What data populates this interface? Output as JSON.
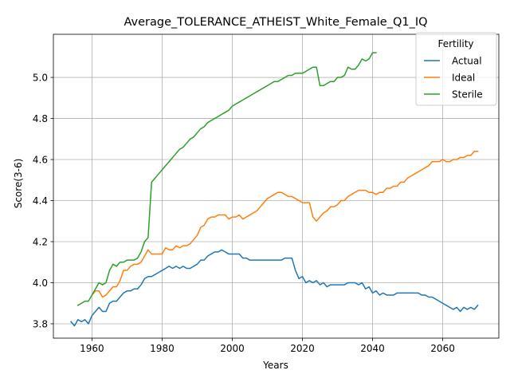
{
  "chart_data": {
    "type": "line",
    "title": "Average_TOLERANCE_ATHEIST_White_Female_Q1_IQ",
    "xlabel": "Years",
    "ylabel": "Score(3-6)",
    "xlim": [
      1949,
      2076
    ],
    "ylim": [
      3.73,
      5.21
    ],
    "xticks": [
      1960,
      1980,
      2000,
      2020,
      2040,
      2060
    ],
    "yticks": [
      3.8,
      4.0,
      4.2,
      4.4,
      4.6,
      4.8,
      5.0
    ],
    "ytick_labels": [
      "3.8",
      "4.0",
      "4.2",
      "4.4",
      "4.6",
      "4.8",
      "5.0"
    ],
    "grid": true,
    "legend": {
      "title": "Fertility",
      "placement": "top-right"
    },
    "series": [
      {
        "name": "Actual",
        "color": "#1f77b4",
        "x": [
          1954,
          1955,
          1956,
          1957,
          1958,
          1959,
          1960,
          1961,
          1962,
          1963,
          1964,
          1965,
          1966,
          1967,
          1968,
          1969,
          1970,
          1971,
          1972,
          1973,
          1974,
          1975,
          1976,
          1977,
          1978,
          1979,
          1980,
          1981,
          1982,
          1983,
          1984,
          1985,
          1986,
          1987,
          1988,
          1989,
          1990,
          1991,
          1992,
          1993,
          1994,
          1995,
          1996,
          1997,
          1998,
          1999,
          2000,
          2001,
          2002,
          2003,
          2004,
          2005,
          2006,
          2007,
          2008,
          2009,
          2010,
          2011,
          2012,
          2013,
          2014,
          2015,
          2016,
          2017,
          2018,
          2019,
          2020,
          2021,
          2022,
          2023,
          2024,
          2025,
          2026,
          2027,
          2028,
          2029,
          2030,
          2031,
          2032,
          2033,
          2034,
          2035,
          2036,
          2037,
          2038,
          2039,
          2040,
          2041,
          2042,
          2043,
          2044,
          2045,
          2046,
          2047,
          2048,
          2049,
          2050,
          2051,
          2052,
          2053,
          2054,
          2055,
          2056,
          2057,
          2058,
          2059,
          2060,
          2061,
          2062,
          2063,
          2064,
          2065,
          2066,
          2067,
          2068,
          2069,
          2070
        ],
        "y": [
          3.81,
          3.79,
          3.82,
          3.81,
          3.82,
          3.8,
          3.84,
          3.86,
          3.88,
          3.86,
          3.86,
          3.9,
          3.91,
          3.91,
          3.93,
          3.95,
          3.96,
          3.96,
          3.97,
          3.97,
          3.99,
          4.02,
          4.03,
          4.03,
          4.04,
          4.05,
          4.06,
          4.07,
          4.08,
          4.07,
          4.08,
          4.07,
          4.08,
          4.07,
          4.07,
          4.08,
          4.09,
          4.11,
          4.11,
          4.13,
          4.14,
          4.15,
          4.15,
          4.16,
          4.15,
          4.14,
          4.14,
          4.14,
          4.14,
          4.12,
          4.12,
          4.11,
          4.11,
          4.11,
          4.11,
          4.11,
          4.11,
          4.11,
          4.11,
          4.11,
          4.11,
          4.12,
          4.12,
          4.12,
          4.06,
          4.02,
          4.03,
          4.0,
          4.01,
          4.0,
          4.01,
          3.99,
          4.0,
          3.98,
          3.99,
          3.99,
          3.99,
          3.99,
          3.99,
          4.0,
          4.0,
          4.0,
          3.99,
          4.0,
          3.97,
          3.98,
          3.95,
          3.96,
          3.94,
          3.95,
          3.94,
          3.94,
          3.94,
          3.95,
          3.95,
          3.95,
          3.95,
          3.95,
          3.95,
          3.95,
          3.94,
          3.94,
          3.93,
          3.93,
          3.92,
          3.91,
          3.9,
          3.89,
          3.88,
          3.87,
          3.88,
          3.86,
          3.88,
          3.87,
          3.88,
          3.87,
          3.89
        ]
      },
      {
        "name": "Ideal",
        "color": "#ff7f0e",
        "x": [
          1960,
          1961,
          1962,
          1963,
          1964,
          1965,
          1966,
          1967,
          1968,
          1969,
          1970,
          1971,
          1972,
          1973,
          1974,
          1975,
          1976,
          1977,
          1978,
          1979,
          1980,
          1981,
          1982,
          1983,
          1984,
          1985,
          1986,
          1987,
          1988,
          1989,
          1990,
          1991,
          1992,
          1993,
          1994,
          1995,
          1996,
          1997,
          1998,
          1999,
          2000,
          2001,
          2002,
          2003,
          2004,
          2005,
          2006,
          2007,
          2008,
          2009,
          2010,
          2011,
          2012,
          2013,
          2014,
          2015,
          2016,
          2017,
          2018,
          2019,
          2020,
          2021,
          2022,
          2023,
          2024,
          2025,
          2026,
          2027,
          2028,
          2029,
          2030,
          2031,
          2032,
          2033,
          2034,
          2035,
          2036,
          2037,
          2038,
          2039,
          2040,
          2041,
          2042,
          2043,
          2044,
          2045,
          2046,
          2047,
          2048,
          2049,
          2050,
          2051,
          2052,
          2053,
          2054,
          2055,
          2056,
          2057,
          2058,
          2059,
          2060,
          2061,
          2062,
          2063,
          2064,
          2065,
          2066,
          2067,
          2068,
          2069,
          2070
        ],
        "y": [
          3.94,
          3.96,
          3.96,
          3.93,
          3.94,
          3.96,
          3.98,
          3.98,
          4.01,
          4.06,
          4.06,
          4.08,
          4.09,
          4.09,
          4.1,
          4.13,
          4.16,
          4.14,
          4.14,
          4.14,
          4.14,
          4.17,
          4.16,
          4.16,
          4.18,
          4.17,
          4.18,
          4.18,
          4.19,
          4.21,
          4.23,
          4.27,
          4.28,
          4.31,
          4.32,
          4.32,
          4.33,
          4.33,
          4.33,
          4.31,
          4.32,
          4.32,
          4.33,
          4.31,
          4.32,
          4.33,
          4.34,
          4.35,
          4.37,
          4.39,
          4.41,
          4.42,
          4.43,
          4.44,
          4.44,
          4.43,
          4.42,
          4.42,
          4.41,
          4.4,
          4.39,
          4.39,
          4.39,
          4.32,
          4.3,
          4.32,
          4.34,
          4.35,
          4.37,
          4.37,
          4.38,
          4.4,
          4.4,
          4.42,
          4.43,
          4.44,
          4.45,
          4.45,
          4.45,
          4.44,
          4.44,
          4.43,
          4.44,
          4.44,
          4.46,
          4.46,
          4.47,
          4.47,
          4.49,
          4.49,
          4.51,
          4.52,
          4.53,
          4.54,
          4.55,
          4.56,
          4.57,
          4.59,
          4.59,
          4.59,
          4.6,
          4.59,
          4.59,
          4.6,
          4.6,
          4.61,
          4.61,
          4.62,
          4.62,
          4.64,
          4.64
        ]
      },
      {
        "name": "Sterile",
        "color": "#2ca02c",
        "x": [
          1956,
          1957,
          1958,
          1959,
          1960,
          1961,
          1962,
          1963,
          1964,
          1965,
          1966,
          1967,
          1968,
          1969,
          1970,
          1971,
          1972,
          1973,
          1974,
          1975,
          1976,
          1977,
          1978,
          1979,
          1980,
          1981,
          1982,
          1983,
          1984,
          1985,
          1986,
          1987,
          1988,
          1989,
          1990,
          1991,
          1992,
          1993,
          1994,
          1995,
          1996,
          1997,
          1998,
          1999,
          2000,
          2001,
          2002,
          2003,
          2004,
          2005,
          2006,
          2007,
          2008,
          2009,
          2010,
          2011,
          2012,
          2013,
          2014,
          2015,
          2016,
          2017,
          2018,
          2019,
          2020,
          2021,
          2022,
          2023,
          2024,
          2025,
          2026,
          2027,
          2028,
          2029,
          2030,
          2031,
          2032,
          2033,
          2034,
          2035,
          2036,
          2037,
          2038,
          2039,
          2040,
          2041
        ],
        "y": [
          3.89,
          3.9,
          3.91,
          3.91,
          3.94,
          3.97,
          4.0,
          3.99,
          4.0,
          4.06,
          4.09,
          4.08,
          4.1,
          4.1,
          4.11,
          4.11,
          4.11,
          4.12,
          4.15,
          4.2,
          4.22,
          4.49,
          4.51,
          4.53,
          4.55,
          4.57,
          4.59,
          4.61,
          4.63,
          4.65,
          4.66,
          4.68,
          4.7,
          4.71,
          4.73,
          4.75,
          4.76,
          4.78,
          4.79,
          4.8,
          4.81,
          4.82,
          4.83,
          4.84,
          4.86,
          4.87,
          4.88,
          4.89,
          4.9,
          4.91,
          4.92,
          4.93,
          4.94,
          4.95,
          4.96,
          4.97,
          4.98,
          4.98,
          4.99,
          5.0,
          5.01,
          5.01,
          5.02,
          5.02,
          5.02,
          5.03,
          5.04,
          5.05,
          5.05,
          4.96,
          4.96,
          4.97,
          4.98,
          4.98,
          5.0,
          5.0,
          5.01,
          5.05,
          5.04,
          5.04,
          5.06,
          5.09,
          5.08,
          5.09,
          5.12,
          5.12
        ]
      }
    ]
  }
}
